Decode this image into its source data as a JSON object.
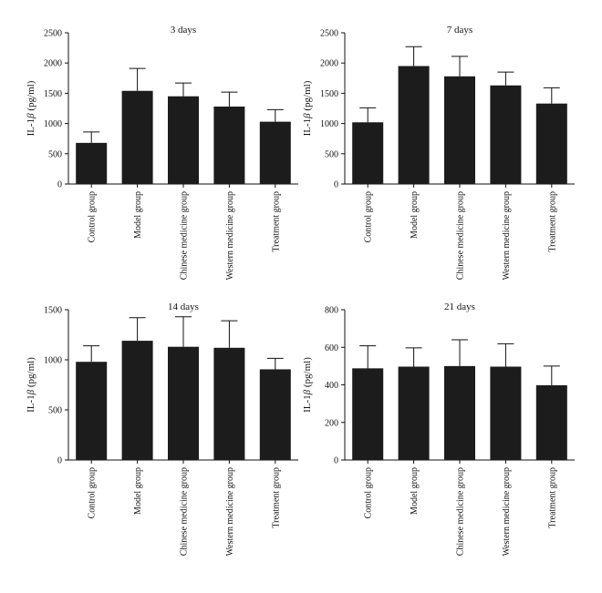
{
  "chart_data": [
    {
      "type": "bar",
      "title": "3 days",
      "ylabel_prefix": "IL-1",
      "ylabel_symbol": "β",
      "ylabel_suffix": " (pg/ml)",
      "categories": [
        "Control group",
        "Model group",
        "Chinese medicine group",
        "Western medicine group",
        "Treatment group"
      ],
      "values": [
        680,
        1540,
        1450,
        1280,
        1030
      ],
      "errors": [
        180,
        370,
        220,
        240,
        200
      ],
      "ylim": [
        0,
        2500
      ],
      "yticks": [
        0,
        500,
        1000,
        1500,
        2000,
        2500
      ],
      "bar_color": "#1c1c1c"
    },
    {
      "type": "bar",
      "title": "7 days",
      "ylabel_prefix": "IL-1",
      "ylabel_symbol": "β",
      "ylabel_suffix": " (pg/ml)",
      "categories": [
        "Control group",
        "Model group",
        "Chinese medicine group",
        "Western medicine group",
        "Treatment group"
      ],
      "values": [
        1020,
        1950,
        1780,
        1630,
        1330
      ],
      "errors": [
        240,
        320,
        330,
        220,
        260
      ],
      "ylim": [
        0,
        2500
      ],
      "yticks": [
        0,
        500,
        1000,
        1500,
        2000,
        2500
      ],
      "bar_color": "#1c1c1c"
    },
    {
      "type": "bar",
      "title": "14 days",
      "ylabel_prefix": "IL-1",
      "ylabel_symbol": "β",
      "ylabel_suffix": " (pg/ml)",
      "categories": [
        "Control group",
        "Model group",
        "Chinese medicine group",
        "Western medicine group",
        "Treatment group"
      ],
      "values": [
        980,
        1190,
        1130,
        1120,
        905
      ],
      "errors": [
        160,
        230,
        300,
        270,
        110
      ],
      "ylim": [
        0,
        1500
      ],
      "yticks": [
        0,
        500,
        1000,
        1500
      ],
      "bar_color": "#1c1c1c"
    },
    {
      "type": "bar",
      "title": "21 days",
      "ylabel_prefix": "IL-1",
      "ylabel_symbol": "β",
      "ylabel_suffix": " (pg/ml)",
      "categories": [
        "Control group",
        "Model group",
        "Chinese medicine group",
        "Western medicine group",
        "Treatment group"
      ],
      "values": [
        488,
        497,
        500,
        497,
        398
      ],
      "errors": [
        120,
        100,
        140,
        122,
        102
      ],
      "ylim": [
        0,
        800
      ],
      "yticks": [
        0,
        200,
        400,
        600,
        800
      ],
      "bar_color": "#1c1c1c"
    }
  ]
}
